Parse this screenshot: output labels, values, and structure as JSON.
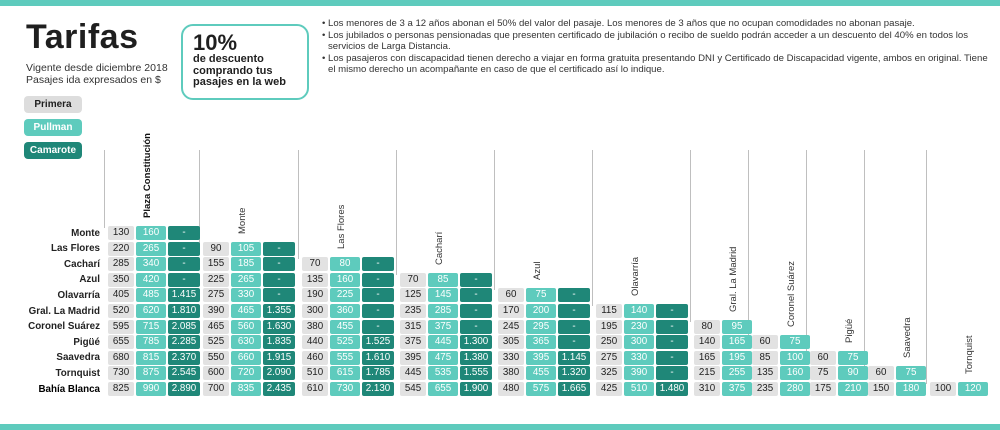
{
  "header": {
    "title": "Tarifas",
    "subtitle_line1": "Vigente desde diciembre 2018",
    "subtitle_line2": "Pasajes ida expresados en $"
  },
  "discount": {
    "percent": "10%",
    "line1": "de descuento",
    "line2": "comprando tus",
    "line3": "pasajes en la web"
  },
  "notes": [
    "Los menores de 3 a 12 años abonan el 50% del valor del pasaje. Los menores de 3 años que no ocupan comodidades no abonan pasaje.",
    "Los jubilados o personas pensionadas que presenten certificado de jubilación o recibo de sueldo podrán acceder a un descuento del 40% en todos los servicios de Larga Distancia.",
    "Los pasajeros con discapacidad tienen derecho a viajar en forma gratuita presentando DNI y Certificado de Discapacidad vigente, ambos en original. Tiene el mismo derecho un acompañante en caso de que el certificado así lo indique."
  ],
  "legend": {
    "primera": "Primera",
    "pullman": "Pullman",
    "camarote": "Camarote"
  },
  "colors": {
    "accent": "#5ecbbd",
    "dark": "#1f8778",
    "light": "#e2e2e2"
  },
  "columns": [
    "Plaza Constitución",
    "Monte",
    "Las Flores",
    "Cacharí",
    "Azul",
    "Olavarría",
    "Gral. La Madrid",
    "Coronel Suárez",
    "Pigüé",
    "Saavedra",
    "Tornquist"
  ],
  "rows": [
    {
      "name": "Monte",
      "fares": [
        [
          "130",
          "160",
          "-"
        ]
      ]
    },
    {
      "name": "Las Flores",
      "fares": [
        [
          "220",
          "265",
          "-"
        ],
        [
          "90",
          "105",
          "-"
        ]
      ]
    },
    {
      "name": "Cacharí",
      "fares": [
        [
          "285",
          "340",
          "-"
        ],
        [
          "155",
          "185",
          "-"
        ],
        [
          "70",
          "80",
          "-"
        ]
      ]
    },
    {
      "name": "Azul",
      "fares": [
        [
          "350",
          "420",
          "-"
        ],
        [
          "225",
          "265",
          "-"
        ],
        [
          "135",
          "160",
          "-"
        ],
        [
          "70",
          "85",
          "-"
        ]
      ]
    },
    {
      "name": "Olavarría",
      "fares": [
        [
          "405",
          "485",
          "1.415"
        ],
        [
          "275",
          "330",
          "-"
        ],
        [
          "190",
          "225",
          "-"
        ],
        [
          "125",
          "145",
          "-"
        ],
        [
          "60",
          "75",
          "-"
        ]
      ]
    },
    {
      "name": "Gral. La Madrid",
      "fares": [
        [
          "520",
          "620",
          "1.810"
        ],
        [
          "390",
          "465",
          "1.355"
        ],
        [
          "300",
          "360",
          "-"
        ],
        [
          "235",
          "285",
          "-"
        ],
        [
          "170",
          "200",
          "-"
        ],
        [
          "115",
          "140",
          "-"
        ]
      ]
    },
    {
      "name": "Coronel Suárez",
      "fares": [
        [
          "595",
          "715",
          "2.085"
        ],
        [
          "465",
          "560",
          "1.630"
        ],
        [
          "380",
          "455",
          "-"
        ],
        [
          "315",
          "375",
          "-"
        ],
        [
          "245",
          "295",
          "-"
        ],
        [
          "195",
          "230",
          "-"
        ],
        [
          "80",
          "95"
        ]
      ]
    },
    {
      "name": "Pigüé",
      "fares": [
        [
          "655",
          "785",
          "2.285"
        ],
        [
          "525",
          "630",
          "1.835"
        ],
        [
          "440",
          "525",
          "1.525"
        ],
        [
          "375",
          "445",
          "1.300"
        ],
        [
          "305",
          "365",
          "-"
        ],
        [
          "250",
          "300",
          "-"
        ],
        [
          "140",
          "165"
        ],
        [
          "60",
          "75"
        ]
      ]
    },
    {
      "name": "Saavedra",
      "fares": [
        [
          "680",
          "815",
          "2.370"
        ],
        [
          "550",
          "660",
          "1.915"
        ],
        [
          "460",
          "555",
          "1.610"
        ],
        [
          "395",
          "475",
          "1.380"
        ],
        [
          "330",
          "395",
          "1.145"
        ],
        [
          "275",
          "330",
          "-"
        ],
        [
          "165",
          "195"
        ],
        [
          "85",
          "100"
        ],
        [
          "60",
          "75"
        ]
      ]
    },
    {
      "name": "Tornquist",
      "fares": [
        [
          "730",
          "875",
          "2.545"
        ],
        [
          "600",
          "720",
          "2.090"
        ],
        [
          "510",
          "615",
          "1.785"
        ],
        [
          "445",
          "535",
          "1.555"
        ],
        [
          "380",
          "455",
          "1.320"
        ],
        [
          "325",
          "390",
          "-"
        ],
        [
          "215",
          "255"
        ],
        [
          "135",
          "160"
        ],
        [
          "75",
          "90"
        ],
        [
          "60",
          "75"
        ]
      ]
    },
    {
      "name": "Bahía Blanca",
      "fares": [
        [
          "825",
          "990",
          "2.890"
        ],
        [
          "700",
          "835",
          "2.435"
        ],
        [
          "610",
          "730",
          "2.130"
        ],
        [
          "545",
          "655",
          "1.900"
        ],
        [
          "480",
          "575",
          "1.665"
        ],
        [
          "425",
          "510",
          "1.480"
        ],
        [
          "310",
          "375"
        ],
        [
          "235",
          "280"
        ],
        [
          "175",
          "210"
        ],
        [
          "150",
          "180"
        ],
        [
          "100",
          "120"
        ]
      ]
    }
  ]
}
